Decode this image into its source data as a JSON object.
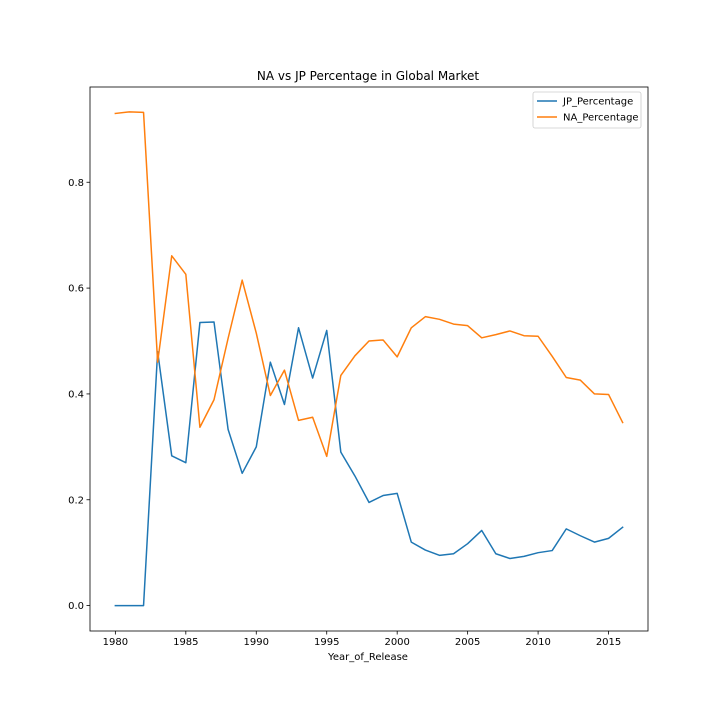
{
  "chart_data": {
    "type": "line",
    "title": "NA vs JP Percentage in Global Market",
    "xlabel": "Year_of_Release",
    "ylabel": "",
    "xlim": [
      1978.2,
      2017.8
    ],
    "ylim": [
      -0.048,
      0.98
    ],
    "xticks": [
      1980,
      1985,
      1990,
      1995,
      2000,
      2005,
      2010,
      2015
    ],
    "yticks": [
      0.0,
      0.2,
      0.4,
      0.6,
      0.8
    ],
    "ytick_labels": [
      "0.0",
      "0.2",
      "0.4",
      "0.6",
      "0.8"
    ],
    "grid": false,
    "legend": "top-right",
    "x": [
      1980,
      1981,
      1982,
      1983,
      1984,
      1985,
      1986,
      1987,
      1988,
      1989,
      1990,
      1991,
      1992,
      1993,
      1994,
      1995,
      1996,
      1997,
      1998,
      1999,
      2000,
      2001,
      2002,
      2003,
      2004,
      2005,
      2006,
      2007,
      2008,
      2009,
      2010,
      2011,
      2012,
      2013,
      2014,
      2015,
      2016
    ],
    "series": [
      {
        "name": "JP_Percentage",
        "color": "#1f77b4",
        "values": [
          0.0,
          0.0,
          0.0,
          0.48,
          0.283,
          0.27,
          0.535,
          0.536,
          0.333,
          0.25,
          0.3,
          0.46,
          0.38,
          0.525,
          0.43,
          0.52,
          0.29,
          0.245,
          0.195,
          0.208,
          0.212,
          0.12,
          0.105,
          0.095,
          0.098,
          0.117,
          0.142,
          0.098,
          0.089,
          0.093,
          0.1,
          0.104,
          0.145,
          0.132,
          0.12,
          0.127,
          0.148
        ]
      },
      {
        "name": "NA_Percentage",
        "color": "#ff7f0e",
        "values": [
          0.93,
          0.933,
          0.932,
          0.46,
          0.661,
          0.626,
          0.337,
          0.389,
          0.505,
          0.615,
          0.515,
          0.397,
          0.445,
          0.35,
          0.356,
          0.282,
          0.435,
          0.472,
          0.5,
          0.502,
          0.47,
          0.525,
          0.546,
          0.541,
          0.532,
          0.529,
          0.506,
          0.512,
          0.519,
          0.51,
          0.509,
          0.471,
          0.431,
          0.426,
          0.4,
          0.399,
          0.346
        ]
      }
    ]
  }
}
